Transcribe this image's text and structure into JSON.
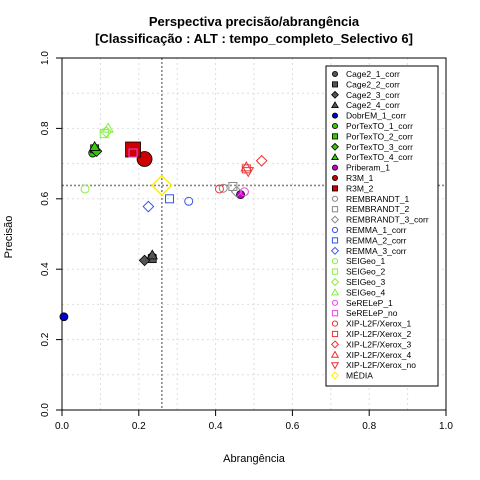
{
  "chart_data": {
    "type": "scatter",
    "title": "Perspectiva precisão/abrangência",
    "subtitle": "[Classificação : ALT : tempo_completo_Selectivo 6]",
    "xlabel": "Abrangência",
    "ylabel": "Precisão",
    "xlim": [
      0,
      1
    ],
    "ylim": [
      0,
      1
    ],
    "xticks": [
      "0.0",
      "0.2",
      "0.4",
      "0.6",
      "0.8",
      "1.0"
    ],
    "yticks": [
      "0.0",
      "0.2",
      "0.4",
      "0.6",
      "0.8",
      "1.0"
    ],
    "grid": true,
    "legend_position": "right",
    "reference_lines": {
      "x": 0.26,
      "y": 0.638
    },
    "series": [
      {
        "name": "Cage2_1_corr",
        "marker": "circle",
        "filled": true,
        "color": "#555555",
        "x": 0.235,
        "y": 0.435
      },
      {
        "name": "Cage2_2_corr",
        "marker": "square",
        "filled": true,
        "color": "#555555",
        "x": 0.235,
        "y": 0.43
      },
      {
        "name": "Cage2_3_corr",
        "marker": "diamond",
        "filled": true,
        "color": "#555555",
        "x": 0.215,
        "y": 0.425
      },
      {
        "name": "Cage2_4_corr",
        "marker": "triangle",
        "filled": true,
        "color": "#555555",
        "x": 0.235,
        "y": 0.44
      },
      {
        "name": "DobrEM_1_corr",
        "marker": "circle",
        "filled": true,
        "color": "#0000cc",
        "x": 0.005,
        "y": 0.265
      },
      {
        "name": "PorTexTO_1_corr",
        "marker": "circle",
        "filled": true,
        "color": "#33cc00",
        "x": 0.08,
        "y": 0.73
      },
      {
        "name": "PorTexTO_2_corr",
        "marker": "square",
        "filled": true,
        "color": "#33cc00",
        "x": 0.085,
        "y": 0.742
      },
      {
        "name": "PorTexTO_3_corr",
        "marker": "diamond",
        "filled": true,
        "color": "#33cc00",
        "x": 0.09,
        "y": 0.735
      },
      {
        "name": "PorTexTO_4_corr",
        "marker": "triangle",
        "filled": true,
        "color": "#33cc00",
        "x": 0.085,
        "y": 0.748
      },
      {
        "name": "Priberam_1",
        "marker": "circle",
        "filled": true,
        "color": "#cc00cc",
        "x": 0.465,
        "y": 0.612
      },
      {
        "name": "R3M_1",
        "marker": "circle",
        "filled": true,
        "color": "#cc0000",
        "x": 0.215,
        "y": 0.713
      },
      {
        "name": "R3M_2",
        "marker": "square",
        "filled": true,
        "color": "#cc0000",
        "x": 0.185,
        "y": 0.74
      },
      {
        "name": "REMBRANDT_1",
        "marker": "circle",
        "filled": false,
        "color": "#888888",
        "x": 0.42,
        "y": 0.63
      },
      {
        "name": "REMBRANDT_2",
        "marker": "square",
        "filled": false,
        "color": "#888888",
        "x": 0.445,
        "y": 0.635
      },
      {
        "name": "REMBRANDT_3_corr",
        "marker": "diamond",
        "filled": false,
        "color": "#888888",
        "x": 0.455,
        "y": 0.62
      },
      {
        "name": "REMMA_1_corr",
        "marker": "circle",
        "filled": false,
        "color": "#3355ee",
        "x": 0.33,
        "y": 0.593
      },
      {
        "name": "REMMA_2_corr",
        "marker": "square",
        "filled": false,
        "color": "#3355ee",
        "x": 0.28,
        "y": 0.6
      },
      {
        "name": "REMMA_3_corr",
        "marker": "diamond",
        "filled": false,
        "color": "#3355ee",
        "x": 0.225,
        "y": 0.578
      },
      {
        "name": "SEIGeo_1",
        "marker": "circle",
        "filled": false,
        "color": "#88ee44",
        "x": 0.06,
        "y": 0.628
      },
      {
        "name": "SEIGeo_2",
        "marker": "square",
        "filled": false,
        "color": "#88ee44",
        "x": 0.11,
        "y": 0.785
      },
      {
        "name": "SEIGeo_3",
        "marker": "diamond",
        "filled": false,
        "color": "#88ee44",
        "x": 0.115,
        "y": 0.79
      },
      {
        "name": "SEIGeo_4",
        "marker": "triangle",
        "filled": false,
        "color": "#88ee44",
        "x": 0.12,
        "y": 0.8
      },
      {
        "name": "SeRELeP_1",
        "marker": "circle",
        "filled": false,
        "color": "#ee44ee",
        "x": 0.475,
        "y": 0.62
      },
      {
        "name": "SeRELeP_no",
        "marker": "square",
        "filled": false,
        "color": "#ee44ee",
        "x": 0.185,
        "y": 0.73
      },
      {
        "name": "XIP-L2F/Xerox_1",
        "marker": "circle",
        "filled": false,
        "color": "#ee3333",
        "x": 0.41,
        "y": 0.628
      },
      {
        "name": "XIP-L2F/Xerox_2",
        "marker": "square",
        "filled": false,
        "color": "#ee3333",
        "x": 0.48,
        "y": 0.685
      },
      {
        "name": "XIP-L2F/Xerox_3",
        "marker": "diamond",
        "filled": false,
        "color": "#ee3333",
        "x": 0.52,
        "y": 0.708
      },
      {
        "name": "XIP-L2F/Xerox_4",
        "marker": "triangle",
        "filled": false,
        "color": "#ee3333",
        "x": 0.48,
        "y": 0.69
      },
      {
        "name": "XIP-L2F/Xerox_no",
        "marker": "triangle-down",
        "filled": false,
        "color": "#ee3333",
        "x": 0.485,
        "y": 0.678
      },
      {
        "name": "MÉDIA",
        "marker": "diamond-big",
        "filled": false,
        "color": "#ffee00",
        "x": 0.26,
        "y": 0.638
      }
    ]
  }
}
